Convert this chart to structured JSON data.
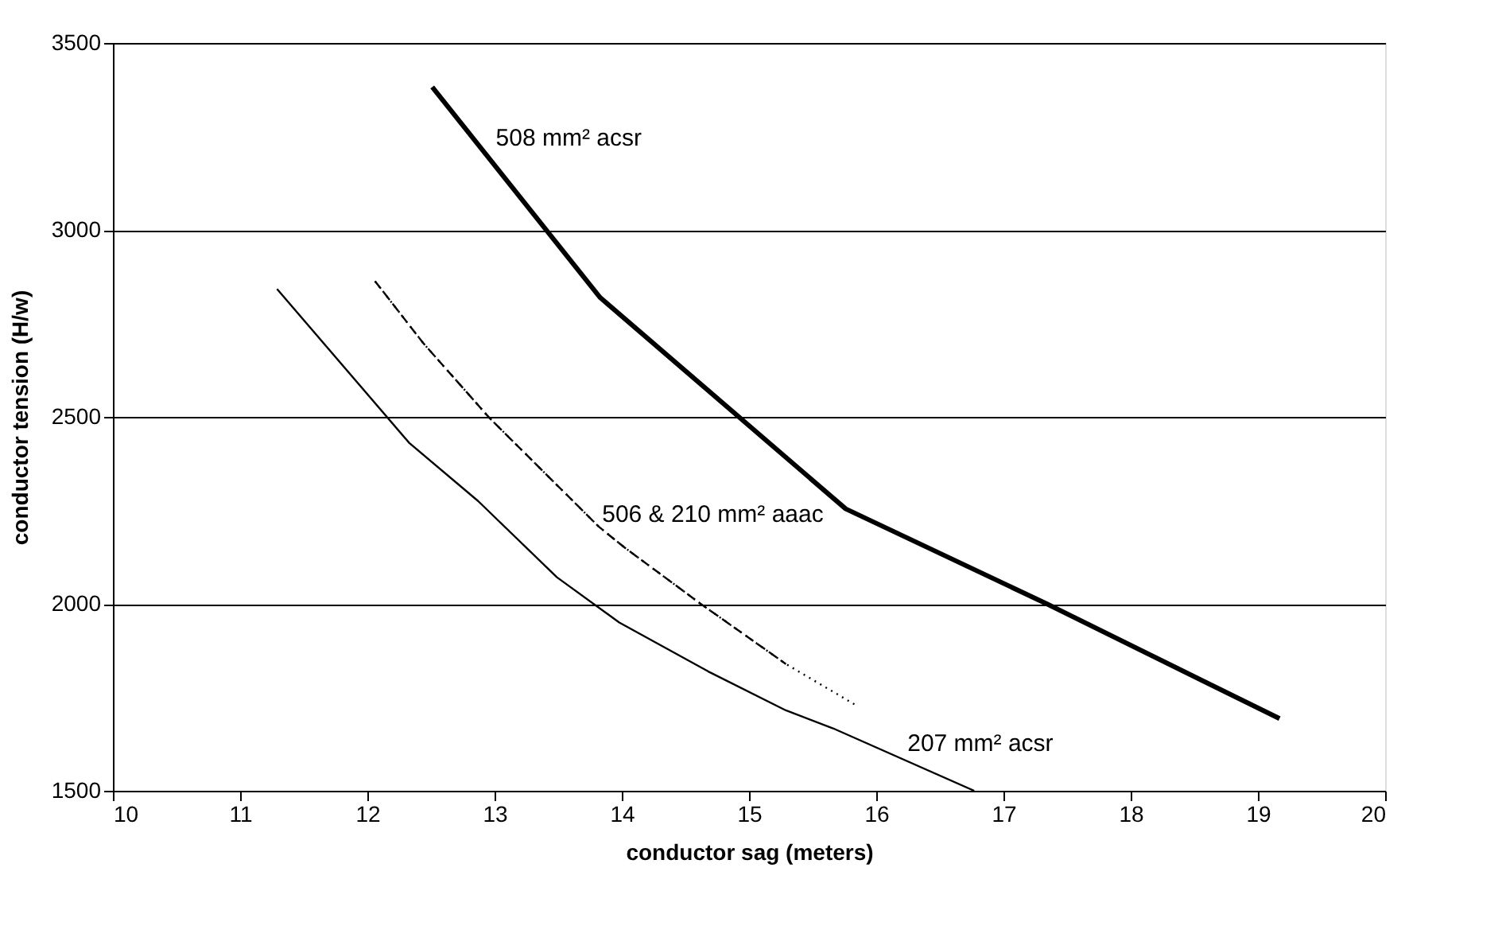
{
  "chart_data": {
    "type": "line",
    "xlabel": "conductor sag (meters)",
    "ylabel": "conductor tension (H/w)",
    "xlim": [
      10,
      20
    ],
    "xticks": [
      10,
      11,
      12,
      13,
      14,
      15,
      16,
      17,
      18,
      19,
      20
    ],
    "ylim": [
      1500,
      3500
    ],
    "yticks": [
      1500,
      2000,
      2500,
      3000,
      3500
    ],
    "grid": "y",
    "marker": "none",
    "series": [
      {
        "name": "508 mm² acsr",
        "color": "#000000",
        "line_style": "solid",
        "x": [
          12.51,
          13.83,
          15.76,
          17.34,
          19.17
        ],
        "values": [
          3382,
          2819,
          2254,
          2000,
          1693
        ]
      },
      {
        "name": "207 mm² acsr",
        "color": "#000000",
        "line_style": "solid",
        "x": [
          11.29,
          12.33,
          12.87,
          13.49,
          13.98,
          14.68,
          15.29,
          15.66,
          16.77
        ],
        "values": [
          2842,
          2430,
          2275,
          2071,
          1950,
          1819,
          1715,
          1667,
          1500
        ]
      },
      {
        "name": "506 & 210 mm² aaac",
        "color": "#000000",
        "line_style": "dashed",
        "x": [
          12.06,
          12.44,
          12.96,
          13.82,
          14.02,
          14.62,
          15.29
        ],
        "values": [
          2863,
          2697,
          2497,
          2206,
          2151,
          2000,
          1839
        ]
      },
      {
        "color": "#000000",
        "line_style": "dotted",
        "x": [
          12.06,
          12.44,
          12.96,
          13.82,
          14.02,
          14.62,
          15.29,
          15.86
        ],
        "values": [
          2863,
          2697,
          2497,
          2206,
          2151,
          2000,
          1839,
          1725
        ]
      }
    ]
  }
}
